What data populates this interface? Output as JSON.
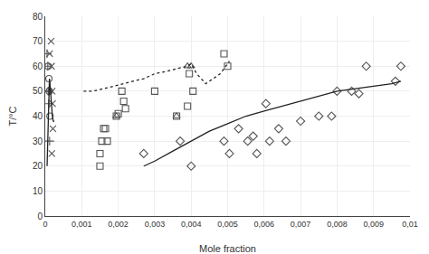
{
  "chart_data": {
    "type": "scatter",
    "xlabel": "Mole fraction",
    "ylabel": "T/°C",
    "xlim": [
      0,
      0.01
    ],
    "ylim": [
      0,
      80
    ],
    "xticks": [
      0,
      {
        "value": 0.001,
        "label": "0,001"
      },
      {
        "value": 0.002,
        "label": "0,002"
      },
      {
        "value": 0.003,
        "label": "0,003"
      },
      {
        "value": 0.004,
        "label": "0,004"
      },
      {
        "value": 0.005,
        "label": "0,005"
      },
      {
        "value": 0.006,
        "label": "0,006"
      },
      {
        "value": 0.007,
        "label": "0,007"
      },
      {
        "value": 0.008,
        "label": "0,008"
      },
      {
        "value": 0.009,
        "label": "0,009"
      },
      {
        "value": 0.01,
        "label": "0,01"
      }
    ],
    "yticks": [
      0,
      10,
      20,
      30,
      40,
      50,
      60,
      70,
      80
    ],
    "grid": true,
    "series": [
      {
        "type": "scatter",
        "marker": "plus",
        "color": "#555555",
        "x": [
          5e-05,
          7e-05,
          8e-05,
          0.0001,
          0.0001,
          0.00012
        ],
        "values": [
          65,
          60,
          50,
          50,
          45,
          30
        ]
      },
      {
        "type": "scatter",
        "marker": "circle",
        "color": "#555555",
        "x": [
          8e-05,
          0.0001,
          0.00011,
          0.00013
        ],
        "values": [
          60,
          55,
          50,
          40
        ]
      },
      {
        "type": "scatter",
        "marker": "cross",
        "color": "#555555",
        "x": [
          0.00012,
          0.00016,
          0.00017,
          0.00019,
          0.0002,
          0.00021,
          0.00018
        ],
        "values": [
          65,
          70,
          60,
          50,
          45,
          35,
          25
        ]
      },
      {
        "type": "scatter",
        "marker": "square",
        "color": "#555555",
        "x": [
          0.0015,
          0.0015,
          0.00155,
          0.0016,
          0.00165,
          0.0017,
          0.00195,
          0.002,
          0.0021,
          0.00215,
          0.0022,
          0.003,
          0.0036,
          0.0039,
          0.00395,
          0.00405,
          0.0049,
          0.005
        ],
        "values": [
          20,
          25,
          30,
          35,
          35,
          30,
          40,
          41,
          50,
          46,
          43,
          50,
          40,
          44,
          57,
          50,
          65,
          60
        ]
      },
      {
        "type": "scatter",
        "marker": "triangle",
        "color": "#555555",
        "x": [
          0.00195,
          0.0036,
          0.0039,
          0.004
        ],
        "values": [
          40,
          40,
          60,
          60
        ]
      },
      {
        "type": "scatter",
        "marker": "diamond",
        "color": "#555555",
        "x": [
          0.0027,
          0.0037,
          0.004,
          0.0049,
          0.00505,
          0.0053,
          0.00555,
          0.0057,
          0.0058,
          0.00605,
          0.00615,
          0.0064,
          0.0066,
          0.007,
          0.0075,
          0.00785,
          0.008,
          0.0084,
          0.0086,
          0.0088,
          0.0096,
          0.00975
        ],
        "values": [
          25,
          30,
          20,
          30,
          25,
          35,
          30,
          32,
          25,
          45,
          30,
          35,
          30,
          38,
          40,
          40,
          50,
          50,
          49,
          60,
          54,
          60
        ]
      },
      {
        "type": "line",
        "line_style": "solid",
        "color": "#222222",
        "x": [
          5e-05,
          7e-05,
          8.5e-05,
          0.0001,
          0.000115,
          0.00013,
          0.000145,
          0.00016,
          0.000175,
          0.000195,
          0.00022,
          0.00025
        ],
        "values": [
          20,
          30,
          40,
          50,
          55,
          53,
          50,
          46,
          43,
          40,
          38,
          38
        ]
      },
      {
        "type": "line",
        "line_style": "solid",
        "color": "#222222",
        "x": [
          0.0027,
          0.003,
          0.0035,
          0.004,
          0.0045,
          0.005,
          0.0055,
          0.006,
          0.0065,
          0.007,
          0.0075,
          0.008,
          0.0085,
          0.009,
          0.0095,
          0.00975
        ],
        "values": [
          20,
          22,
          26,
          30,
          34,
          37,
          40,
          42,
          44,
          46,
          48,
          50,
          51,
          52,
          53,
          54
        ]
      },
      {
        "type": "line",
        "line_style": "dotted",
        "color": "#222222",
        "x": [
          0.00105,
          0.0013,
          0.0016,
          0.0019,
          0.00215,
          0.0024,
          0.0027,
          0.003,
          0.00335,
          0.0036,
          0.0039,
          0.004,
          0.00415,
          0.0044,
          0.0048,
          0.00505
        ],
        "values": [
          50,
          50,
          51,
          52,
          53,
          54,
          55,
          57,
          58,
          59,
          60,
          61,
          57,
          53,
          57,
          62
        ]
      }
    ]
  }
}
